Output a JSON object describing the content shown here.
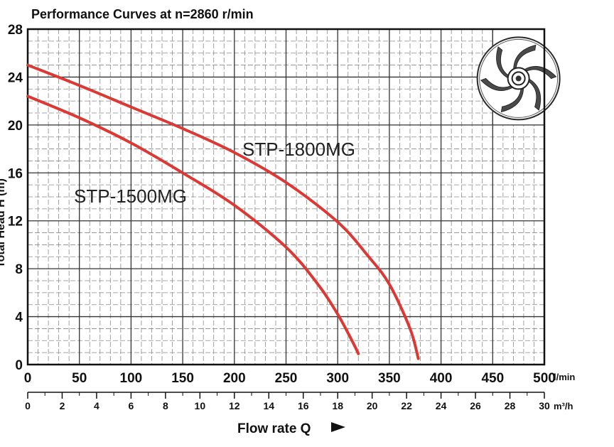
{
  "chart_data": {
    "type": "line",
    "title": "Performance Curves at n=2860 r/min",
    "xlabel": "Flow rate Q",
    "ylabel": "Total Head H (m)",
    "xunit": "l/min",
    "x2unit": "m³/h",
    "xlim": [
      0,
      500
    ],
    "ylim": [
      0,
      28
    ],
    "xticks": [
      "0",
      "50",
      "100",
      "150",
      "200",
      "250",
      "300",
      "350",
      "400",
      "450",
      "500"
    ],
    "yticks": [
      "0",
      "4",
      "8",
      "12",
      "16",
      "20",
      "24",
      "28"
    ],
    "x2ticks": [
      "0",
      "2",
      "4",
      "6",
      "8",
      "10",
      "12",
      "14",
      "16",
      "18",
      "20",
      "22",
      "24",
      "26",
      "28",
      "30"
    ],
    "grid": true,
    "series": [
      {
        "name": "STP-1500MG",
        "color": "#d93a35",
        "x": [
          0,
          50,
          100,
          150,
          200,
          250,
          280,
          300,
          315,
          320
        ],
        "y": [
          22.4,
          20.6,
          18.5,
          16.0,
          13.3,
          9.8,
          6.8,
          4.2,
          1.8,
          0.9
        ]
      },
      {
        "name": "STP-1800MG",
        "color": "#d93a35",
        "x": [
          0,
          50,
          100,
          150,
          200,
          250,
          300,
          330,
          350,
          370,
          378
        ],
        "y": [
          25.0,
          23.3,
          21.5,
          19.7,
          17.7,
          15.2,
          11.9,
          9.0,
          6.7,
          3.0,
          0.5
        ]
      }
    ],
    "icon": "impeller-icon"
  }
}
